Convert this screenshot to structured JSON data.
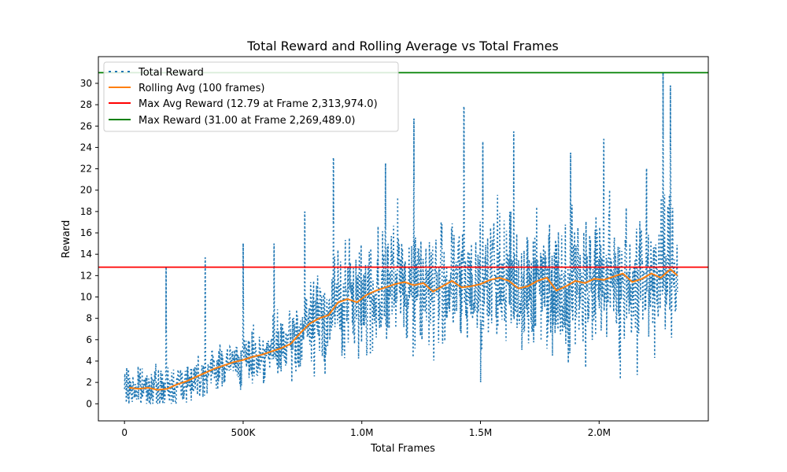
{
  "chart_data": {
    "type": "line",
    "title": "Total Reward and Rolling Average vs Total Frames",
    "xlabel": "Total Frames",
    "ylabel": "Reward",
    "xlim": [
      -110000,
      2460000
    ],
    "ylim": [
      -1.6,
      32.5
    ],
    "xticks": [
      {
        "value": 0,
        "label": "0"
      },
      {
        "value": 500000,
        "label": "500K"
      },
      {
        "value": 1000000,
        "label": "1.0M"
      },
      {
        "value": 1500000,
        "label": "1.5M"
      },
      {
        "value": 2000000,
        "label": "2.0M"
      }
    ],
    "yticks": [
      0,
      2,
      4,
      6,
      8,
      10,
      12,
      14,
      16,
      18,
      20,
      22,
      24,
      26,
      28,
      30
    ],
    "grid": false,
    "legend_position": "top-left",
    "legend": [
      {
        "label": "Total Reward",
        "color": "#1f77b4",
        "style": "dotted"
      },
      {
        "label": "Rolling Avg (100 frames)",
        "color": "#ff7f0e",
        "style": "solid"
      },
      {
        "label": "Max Avg Reward (12.79 at Frame 2,313,974.0)",
        "color": "#d62728",
        "style": "solid"
      },
      {
        "label": "Max Reward (31.00 at Frame 2,269,489.0)",
        "color": "#2ca02c",
        "style": "solid"
      }
    ],
    "hlines": [
      {
        "name": "Max Avg Reward",
        "y": 12.79,
        "color": "#ff0000"
      },
      {
        "name": "Max Reward",
        "y": 31.0,
        "color": "#008000"
      }
    ],
    "series": [
      {
        "name": "Rolling Avg (100 frames)",
        "color": "#ff7f0e",
        "x": [
          20000,
          60000,
          100000,
          140000,
          180000,
          220000,
          260000,
          300000,
          340000,
          380000,
          420000,
          460000,
          500000,
          540000,
          580000,
          620000,
          660000,
          700000,
          740000,
          780000,
          820000,
          860000,
          900000,
          940000,
          980000,
          1020000,
          1060000,
          1100000,
          1140000,
          1180000,
          1220000,
          1260000,
          1300000,
          1340000,
          1380000,
          1420000,
          1460000,
          1500000,
          1540000,
          1580000,
          1620000,
          1660000,
          1700000,
          1740000,
          1780000,
          1820000,
          1860000,
          1900000,
          1940000,
          1980000,
          2020000,
          2060000,
          2100000,
          2140000,
          2180000,
          2220000,
          2260000,
          2300000,
          2330000
        ],
        "values": [
          1.5,
          1.4,
          1.5,
          1.3,
          1.4,
          1.8,
          2.1,
          2.5,
          2.9,
          3.3,
          3.6,
          3.9,
          4.1,
          4.4,
          4.6,
          4.9,
          5.2,
          5.6,
          6.6,
          7.5,
          8.0,
          8.3,
          9.5,
          9.8,
          9.5,
          10.2,
          10.6,
          10.9,
          11.2,
          11.4,
          11.1,
          11.3,
          10.5,
          11.0,
          11.5,
          10.9,
          11.0,
          11.2,
          11.6,
          11.8,
          11.5,
          10.8,
          11.0,
          11.5,
          11.8,
          10.6,
          11.0,
          11.5,
          11.3,
          11.7,
          11.6,
          11.9,
          12.2,
          11.4,
          11.7,
          12.2,
          11.8,
          12.6,
          12.0
        ]
      },
      {
        "name": "Total Reward",
        "color": "#1f77b4",
        "peaks": [
          {
            "x": 175000,
            "y": 12.8
          },
          {
            "x": 340000,
            "y": 13.7
          },
          {
            "x": 500000,
            "y": 15.0
          },
          {
            "x": 630000,
            "y": 15.0
          },
          {
            "x": 760000,
            "y": 18.0
          },
          {
            "x": 880000,
            "y": 23.0
          },
          {
            "x": 1100000,
            "y": 22.5
          },
          {
            "x": 1220000,
            "y": 26.7
          },
          {
            "x": 1430000,
            "y": 27.8
          },
          {
            "x": 1510000,
            "y": 24.5
          },
          {
            "x": 1640000,
            "y": 25.5
          },
          {
            "x": 1880000,
            "y": 23.5
          },
          {
            "x": 2020000,
            "y": 24.8
          },
          {
            "x": 2200000,
            "y": 22.0
          },
          {
            "x": 2269489,
            "y": 31.0
          },
          {
            "x": 2300000,
            "y": 29.8
          }
        ],
        "troughs": [
          {
            "x": 1500000,
            "y": 2.0
          },
          {
            "x": 2090000,
            "y": 2.3
          },
          {
            "x": 2160000,
            "y": 2.7
          }
        ]
      }
    ]
  }
}
